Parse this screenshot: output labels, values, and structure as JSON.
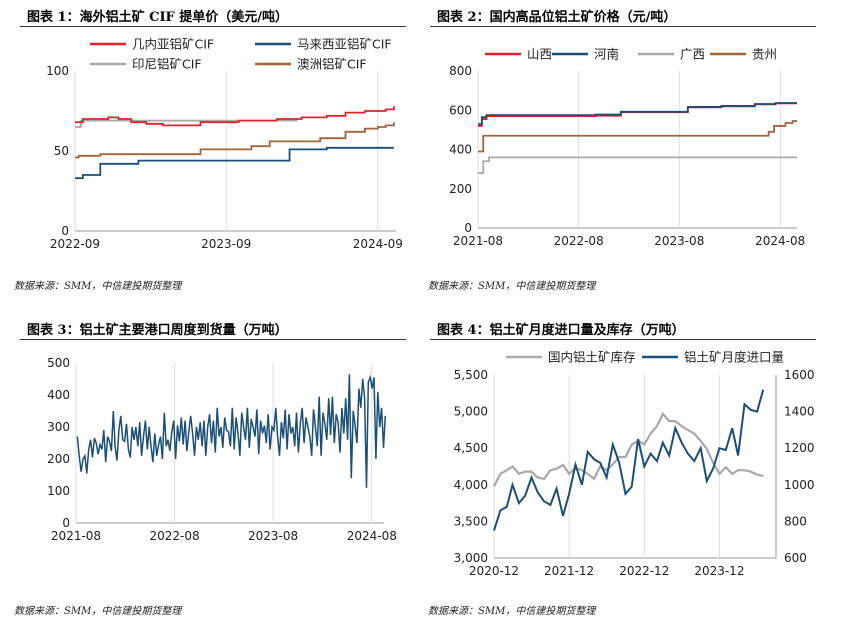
{
  "panels": [
    {
      "title": "图表 1：海外铝土矿 CIF 提单价（美元/吨）",
      "source": "数据来源：SMM，中信建投期货整理"
    },
    {
      "title": "图表 2：国内高品位铝土矿价格（元/吨）",
      "source": "数据来源：SMM，中信建投期货整理"
    },
    {
      "title": "图表 3：铝土矿主要港口周度到货量（万吨）",
      "source": "数据来源：SMM，中信建投期货整理"
    },
    {
      "title": "图表 4：铝土矿月度进口量及库存（万吨）",
      "source": "数据来源：SMM，中信建投期货整理"
    }
  ],
  "chart_data": [
    {
      "type": "line",
      "x_ticks": [
        "2022-09",
        "2023-09",
        "2024-09"
      ],
      "x_range": [
        "2022-09-01",
        "2024-10-15"
      ],
      "ylim": [
        0,
        100
      ],
      "y_ticks": [
        0,
        50,
        100
      ],
      "step": true,
      "series": [
        {
          "name": "几内亚铝矿CIF",
          "color": "#e3202e",
          "points": [
            [
              "2022-09-01",
              68
            ],
            [
              "2022-09-20",
              70
            ],
            [
              "2022-11-20",
              71
            ],
            [
              "2022-12-15",
              70
            ],
            [
              "2023-01-15",
              68
            ],
            [
              "2023-02-20",
              67
            ],
            [
              "2023-04-01",
              66
            ],
            [
              "2023-07-01",
              68
            ],
            [
              "2023-10-01",
              69
            ],
            [
              "2024-01-01",
              70
            ],
            [
              "2024-03-01",
              71
            ],
            [
              "2024-05-01",
              72
            ],
            [
              "2024-06-15",
              74
            ],
            [
              "2024-08-01",
              75
            ],
            [
              "2024-09-20",
              76
            ],
            [
              "2024-10-10",
              78
            ]
          ]
        },
        {
          "name": "马来西亚铝矿CIF",
          "color": "#1c4f78",
          "points": [
            [
              "2022-09-01",
              33
            ],
            [
              "2022-09-20",
              35
            ],
            [
              "2022-11-01",
              42
            ],
            [
              "2023-02-01",
              44
            ],
            [
              "2024-02-01",
              51
            ],
            [
              "2024-05-01",
              52
            ],
            [
              "2024-10-10",
              52
            ]
          ]
        },
        {
          "name": "印尼铝矿CIF",
          "color": "#a9a9a9",
          "points": [
            [
              "2022-09-01",
              65
            ],
            [
              "2022-09-15",
              69
            ],
            [
              "2024-02-20",
              69
            ]
          ]
        },
        {
          "name": "澳洲铝矿CIF",
          "color": "#a0653a",
          "points": [
            [
              "2022-09-01",
              46
            ],
            [
              "2022-09-10",
              47
            ],
            [
              "2022-11-01",
              48
            ],
            [
              "2023-07-01",
              51
            ],
            [
              "2023-11-01",
              53
            ],
            [
              "2023-12-15",
              56
            ],
            [
              "2024-04-15",
              58
            ],
            [
              "2024-06-15",
              62
            ],
            [
              "2024-08-01",
              64
            ],
            [
              "2024-09-01",
              65
            ],
            [
              "2024-09-20",
              66
            ],
            [
              "2024-10-10",
              68
            ]
          ]
        }
      ]
    },
    {
      "type": "line",
      "x_ticks": [
        "2021-08",
        "2022-08",
        "2023-08",
        "2024-08"
      ],
      "x_range": [
        "2021-08-01",
        "2024-10-01"
      ],
      "ylim": [
        0,
        800
      ],
      "y_ticks": [
        0,
        200,
        400,
        600,
        800
      ],
      "step": true,
      "series": [
        {
          "name": "山西",
          "color": "#e3202e",
          "points": [
            [
              "2021-08-01",
              520
            ],
            [
              "2021-08-15",
              555
            ],
            [
              "2021-09-01",
              570
            ],
            [
              "2022-10-01",
              572
            ],
            [
              "2023-01-01",
              590
            ],
            [
              "2023-09-01",
              615
            ],
            [
              "2024-01-01",
              620
            ],
            [
              "2024-05-01",
              630
            ],
            [
              "2024-07-15",
              635
            ],
            [
              "2024-10-01",
              635
            ]
          ]
        },
        {
          "name": "河南",
          "color": "#1c4f78",
          "points": [
            [
              "2021-08-01",
              530
            ],
            [
              "2021-08-15",
              565
            ],
            [
              "2021-09-01",
              575
            ],
            [
              "2022-10-01",
              578
            ],
            [
              "2023-01-01",
              592
            ],
            [
              "2023-09-01",
              617
            ],
            [
              "2024-01-01",
              622
            ],
            [
              "2024-05-01",
              632
            ],
            [
              "2024-07-15",
              637
            ],
            [
              "2024-10-01",
              637
            ]
          ]
        },
        {
          "name": "广西",
          "color": "#a9a9a9",
          "points": [
            [
              "2021-08-01",
              280
            ],
            [
              "2021-08-20",
              340
            ],
            [
              "2021-09-10",
              360
            ],
            [
              "2024-10-01",
              360
            ]
          ]
        },
        {
          "name": "贵州",
          "color": "#a0653a",
          "points": [
            [
              "2021-08-01",
              390
            ],
            [
              "2021-08-20",
              470
            ],
            [
              "2024-06-01",
              470
            ],
            [
              "2024-06-20",
              490
            ],
            [
              "2024-07-10",
              520
            ],
            [
              "2024-08-20",
              535
            ],
            [
              "2024-09-15",
              545
            ],
            [
              "2024-10-01",
              545
            ]
          ]
        }
      ]
    },
    {
      "type": "line",
      "x_ticks": [
        "2021-08",
        "2022-08",
        "2023-08",
        "2024-08"
      ],
      "x_range": [
        "2021-08-01",
        "2024-09-15"
      ],
      "ylim": [
        0,
        500
      ],
      "y_ticks": [
        0,
        100,
        200,
        300,
        400,
        500
      ],
      "series": [
        {
          "name": "",
          "color": "#1c4f78",
          "start": "2021-08-06",
          "interval_days": 7,
          "values": [
            270,
            210,
            160,
            200,
            210,
            155,
            230,
            260,
            205,
            265,
            250,
            215,
            245,
            230,
            290,
            190,
            270,
            255,
            225,
            350,
            240,
            195,
            290,
            335,
            260,
            255,
            310,
            230,
            205,
            300,
            260,
            300,
            240,
            315,
            210,
            270,
            320,
            230,
            300,
            240,
            190,
            280,
            210,
            245,
            270,
            200,
            345,
            240,
            260,
            225,
            285,
            320,
            200,
            305,
            255,
            330,
            245,
            320,
            225,
            285,
            335,
            280,
            210,
            300,
            260,
            315,
            240,
            320,
            210,
            300,
            340,
            250,
            320,
            220,
            360,
            270,
            300,
            235,
            330,
            290,
            285,
            240,
            360,
            230,
            330,
            280,
            210,
            345,
            300,
            260,
            360,
            235,
            325,
            300,
            270,
            355,
            215,
            320,
            280,
            305,
            250,
            340,
            230,
            300,
            290,
            360,
            270,
            210,
            315,
            265,
            355,
            230,
            340,
            280,
            300,
            240,
            345,
            220,
            310,
            360,
            250,
            330,
            300,
            270,
            210,
            355,
            300,
            240,
            395,
            210,
            345,
            310,
            260,
            390,
            275,
            395,
            250,
            340,
            315,
            220,
            360,
            280,
            390,
            260,
            465,
            140,
            350,
            305,
            250,
            420,
            360,
            450,
            390,
            110,
            440,
            455,
            420,
            455,
            200,
            410,
            300,
            360,
            235,
            335
          ]
        }
      ]
    },
    {
      "type": "line",
      "x_ticks": [
        "2020-12",
        "2021-12",
        "2022-12",
        "2023-12"
      ],
      "x_range": [
        "2020-12-01",
        "2024-09-01"
      ],
      "ylim_left": [
        3000,
        5500
      ],
      "y_ticks_left": [
        3000,
        3500,
        4000,
        4500,
        5000,
        5500
      ],
      "ylim_right": [
        600,
        1600
      ],
      "y_ticks_right": [
        600,
        800,
        1000,
        1200,
        1400,
        1600
      ],
      "series": [
        {
          "name": "国内铝土矿库存",
          "color": "#a9a9a9",
          "axis": "left",
          "start": "2020-12",
          "values": [
            3980,
            4150,
            4200,
            4250,
            4150,
            4180,
            4180,
            4100,
            4080,
            4200,
            4220,
            4270,
            4150,
            4230,
            4200,
            4150,
            4080,
            4250,
            4200,
            4280,
            4380,
            4380,
            4550,
            4600,
            4550,
            4700,
            4800,
            4970,
            4870,
            4870,
            4800,
            4750,
            4700,
            4600,
            4490,
            4300,
            4150,
            4240,
            4150,
            4200,
            4200,
            4180,
            4140,
            4120
          ]
        },
        {
          "name": "铝土矿月度进口量",
          "color": "#1c4f78",
          "axis": "right",
          "start": "2020-12",
          "values": [
            750,
            860,
            880,
            1000,
            900,
            940,
            1040,
            960,
            910,
            890,
            980,
            830,
            950,
            1110,
            1000,
            1180,
            1140,
            1120,
            1040,
            1220,
            1120,
            950,
            990,
            1250,
            1100,
            1170,
            1130,
            1230,
            1160,
            1310,
            1230,
            1170,
            1130,
            1200,
            1020,
            1090,
            1200,
            1190,
            1310,
            1160,
            1440,
            1410,
            1400,
            1520
          ]
        }
      ]
    }
  ]
}
